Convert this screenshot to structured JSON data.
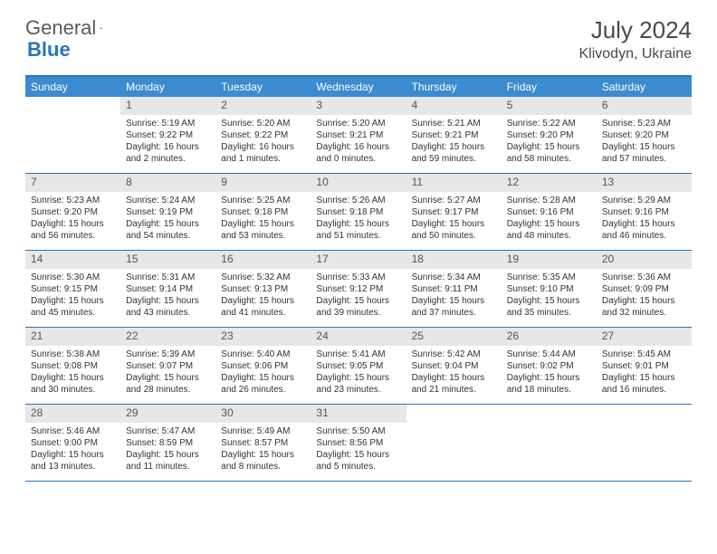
{
  "logo": {
    "text1": "General",
    "text2": "Blue"
  },
  "title": "July 2024",
  "location": "Klivodyn, Ukraine",
  "colors": {
    "header_bg": "#3b8bd0",
    "border": "#2a74b8",
    "daynum_bg": "#e7e7e7",
    "text": "#333333"
  },
  "weekdays": [
    "Sunday",
    "Monday",
    "Tuesday",
    "Wednesday",
    "Thursday",
    "Friday",
    "Saturday"
  ],
  "weeks": [
    [
      null,
      {
        "n": "1",
        "sunrise": "Sunrise: 5:19 AM",
        "sunset": "Sunset: 9:22 PM",
        "daylight": "Daylight: 16 hours and 2 minutes."
      },
      {
        "n": "2",
        "sunrise": "Sunrise: 5:20 AM",
        "sunset": "Sunset: 9:22 PM",
        "daylight": "Daylight: 16 hours and 1 minutes."
      },
      {
        "n": "3",
        "sunrise": "Sunrise: 5:20 AM",
        "sunset": "Sunset: 9:21 PM",
        "daylight": "Daylight: 16 hours and 0 minutes."
      },
      {
        "n": "4",
        "sunrise": "Sunrise: 5:21 AM",
        "sunset": "Sunset: 9:21 PM",
        "daylight": "Daylight: 15 hours and 59 minutes."
      },
      {
        "n": "5",
        "sunrise": "Sunrise: 5:22 AM",
        "sunset": "Sunset: 9:20 PM",
        "daylight": "Daylight: 15 hours and 58 minutes."
      },
      {
        "n": "6",
        "sunrise": "Sunrise: 5:23 AM",
        "sunset": "Sunset: 9:20 PM",
        "daylight": "Daylight: 15 hours and 57 minutes."
      }
    ],
    [
      {
        "n": "7",
        "sunrise": "Sunrise: 5:23 AM",
        "sunset": "Sunset: 9:20 PM",
        "daylight": "Daylight: 15 hours and 56 minutes."
      },
      {
        "n": "8",
        "sunrise": "Sunrise: 5:24 AM",
        "sunset": "Sunset: 9:19 PM",
        "daylight": "Daylight: 15 hours and 54 minutes."
      },
      {
        "n": "9",
        "sunrise": "Sunrise: 5:25 AM",
        "sunset": "Sunset: 9:18 PM",
        "daylight": "Daylight: 15 hours and 53 minutes."
      },
      {
        "n": "10",
        "sunrise": "Sunrise: 5:26 AM",
        "sunset": "Sunset: 9:18 PM",
        "daylight": "Daylight: 15 hours and 51 minutes."
      },
      {
        "n": "11",
        "sunrise": "Sunrise: 5:27 AM",
        "sunset": "Sunset: 9:17 PM",
        "daylight": "Daylight: 15 hours and 50 minutes."
      },
      {
        "n": "12",
        "sunrise": "Sunrise: 5:28 AM",
        "sunset": "Sunset: 9:16 PM",
        "daylight": "Daylight: 15 hours and 48 minutes."
      },
      {
        "n": "13",
        "sunrise": "Sunrise: 5:29 AM",
        "sunset": "Sunset: 9:16 PM",
        "daylight": "Daylight: 15 hours and 46 minutes."
      }
    ],
    [
      {
        "n": "14",
        "sunrise": "Sunrise: 5:30 AM",
        "sunset": "Sunset: 9:15 PM",
        "daylight": "Daylight: 15 hours and 45 minutes."
      },
      {
        "n": "15",
        "sunrise": "Sunrise: 5:31 AM",
        "sunset": "Sunset: 9:14 PM",
        "daylight": "Daylight: 15 hours and 43 minutes."
      },
      {
        "n": "16",
        "sunrise": "Sunrise: 5:32 AM",
        "sunset": "Sunset: 9:13 PM",
        "daylight": "Daylight: 15 hours and 41 minutes."
      },
      {
        "n": "17",
        "sunrise": "Sunrise: 5:33 AM",
        "sunset": "Sunset: 9:12 PM",
        "daylight": "Daylight: 15 hours and 39 minutes."
      },
      {
        "n": "18",
        "sunrise": "Sunrise: 5:34 AM",
        "sunset": "Sunset: 9:11 PM",
        "daylight": "Daylight: 15 hours and 37 minutes."
      },
      {
        "n": "19",
        "sunrise": "Sunrise: 5:35 AM",
        "sunset": "Sunset: 9:10 PM",
        "daylight": "Daylight: 15 hours and 35 minutes."
      },
      {
        "n": "20",
        "sunrise": "Sunrise: 5:36 AM",
        "sunset": "Sunset: 9:09 PM",
        "daylight": "Daylight: 15 hours and 32 minutes."
      }
    ],
    [
      {
        "n": "21",
        "sunrise": "Sunrise: 5:38 AM",
        "sunset": "Sunset: 9:08 PM",
        "daylight": "Daylight: 15 hours and 30 minutes."
      },
      {
        "n": "22",
        "sunrise": "Sunrise: 5:39 AM",
        "sunset": "Sunset: 9:07 PM",
        "daylight": "Daylight: 15 hours and 28 minutes."
      },
      {
        "n": "23",
        "sunrise": "Sunrise: 5:40 AM",
        "sunset": "Sunset: 9:06 PM",
        "daylight": "Daylight: 15 hours and 26 minutes."
      },
      {
        "n": "24",
        "sunrise": "Sunrise: 5:41 AM",
        "sunset": "Sunset: 9:05 PM",
        "daylight": "Daylight: 15 hours and 23 minutes."
      },
      {
        "n": "25",
        "sunrise": "Sunrise: 5:42 AM",
        "sunset": "Sunset: 9:04 PM",
        "daylight": "Daylight: 15 hours and 21 minutes."
      },
      {
        "n": "26",
        "sunrise": "Sunrise: 5:44 AM",
        "sunset": "Sunset: 9:02 PM",
        "daylight": "Daylight: 15 hours and 18 minutes."
      },
      {
        "n": "27",
        "sunrise": "Sunrise: 5:45 AM",
        "sunset": "Sunset: 9:01 PM",
        "daylight": "Daylight: 15 hours and 16 minutes."
      }
    ],
    [
      {
        "n": "28",
        "sunrise": "Sunrise: 5:46 AM",
        "sunset": "Sunset: 9:00 PM",
        "daylight": "Daylight: 15 hours and 13 minutes."
      },
      {
        "n": "29",
        "sunrise": "Sunrise: 5:47 AM",
        "sunset": "Sunset: 8:59 PM",
        "daylight": "Daylight: 15 hours and 11 minutes."
      },
      {
        "n": "30",
        "sunrise": "Sunrise: 5:49 AM",
        "sunset": "Sunset: 8:57 PM",
        "daylight": "Daylight: 15 hours and 8 minutes."
      },
      {
        "n": "31",
        "sunrise": "Sunrise: 5:50 AM",
        "sunset": "Sunset: 8:56 PM",
        "daylight": "Daylight: 15 hours and 5 minutes."
      },
      null,
      null,
      null
    ]
  ]
}
